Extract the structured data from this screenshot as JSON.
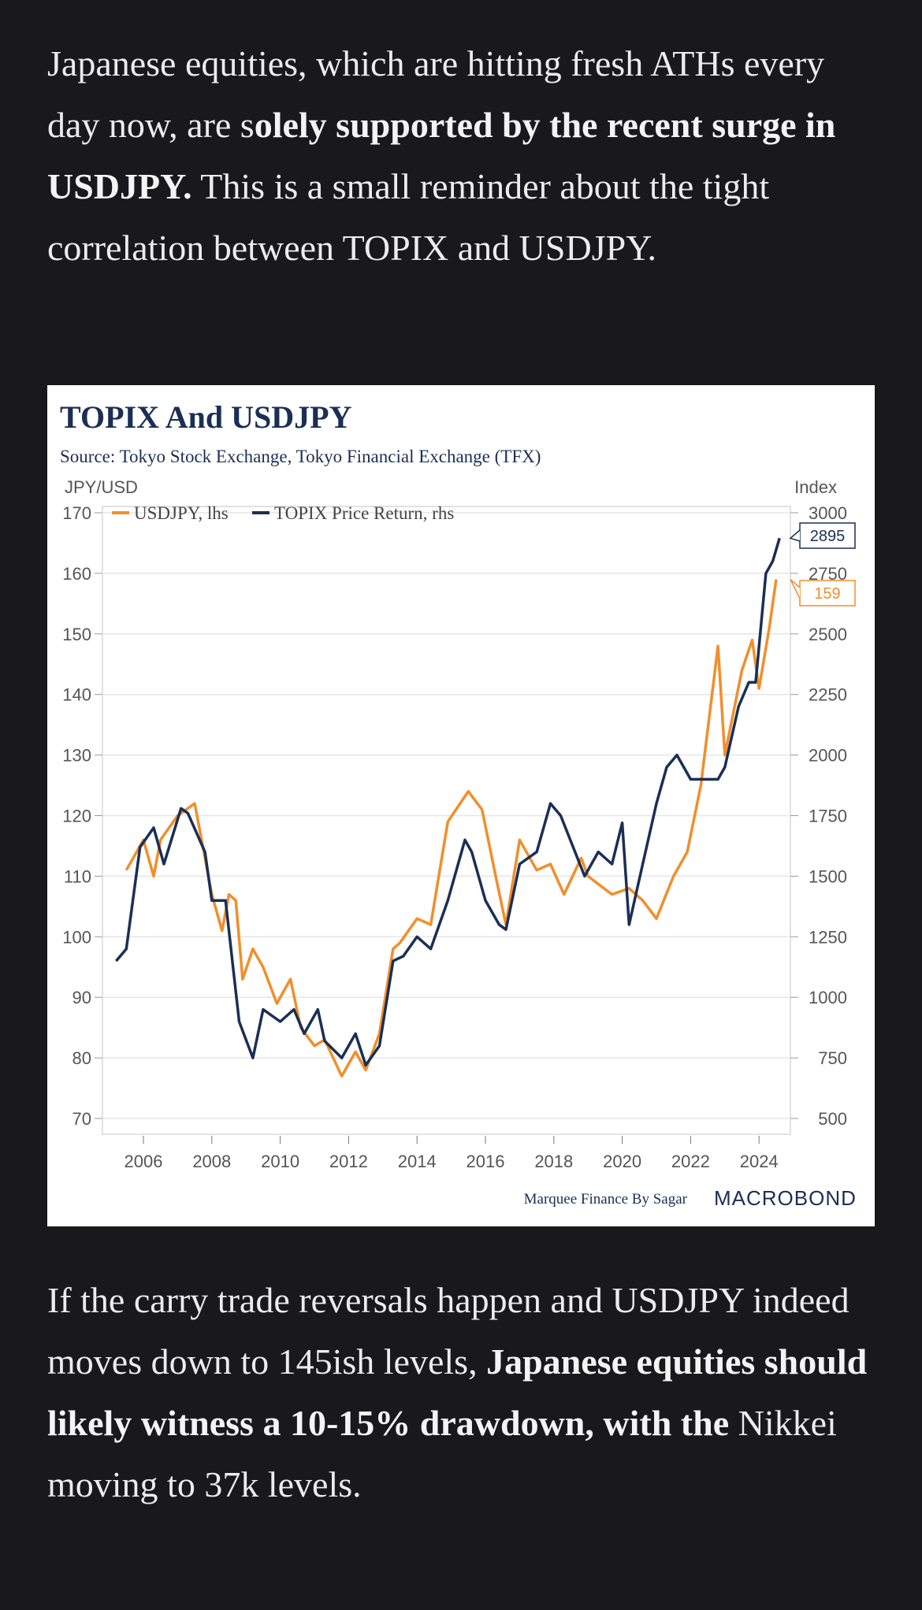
{
  "paragraph1": {
    "t1": "Japanese equities, which are hitting fresh ATHs every day now, are s",
    "b1": "olely supported by the recent surge in USDJPY.",
    "t2": " This is a small reminder about the tight correlation between TOPIX and USDJPY."
  },
  "paragraph2": {
    "t1": "If the carry trade reversals happen and USDJPY indeed moves down to 145ish levels, ",
    "b1": "Japanese equities should likely witness a 10-15% drawdown, with the",
    "t2": " Nikkei moving to 37k levels."
  },
  "chart_data": {
    "type": "line",
    "title": "TOPIX And USDJPY",
    "subtitle": "Source: Tokyo Stock Exchange, Tokyo Financial Exchange (TFX)",
    "ylabel_left": "JPY/USD",
    "ylabel_right": "Index",
    "ylim_left": [
      70,
      170
    ],
    "ylim_right": [
      500,
      3000
    ],
    "yticks_left": [
      "170",
      "160",
      "150",
      "140",
      "130",
      "120",
      "110",
      "100",
      "90",
      "80",
      "70"
    ],
    "yticks_right": [
      "3000",
      "2750",
      "2500",
      "2250",
      "2000",
      "1750",
      "1500",
      "1250",
      "1000",
      "750",
      "500"
    ],
    "xticks": [
      "2006",
      "2008",
      "2010",
      "2012",
      "2014",
      "2016",
      "2018",
      "2020",
      "2022",
      "2024"
    ],
    "legend": [
      "USDJPY, lhs",
      "TOPIX Price Return, rhs"
    ],
    "legend_placement": "top-left",
    "grid": true,
    "colors": {
      "usdjpy": "#f28e2b",
      "topix": "#1b2f55"
    },
    "last_labels": {
      "topix": "2895",
      "usdjpy": "159"
    },
    "series": [
      {
        "name": "USDJPY, lhs",
        "axis": "left",
        "points": [
          [
            2005.5,
            111
          ],
          [
            2005.7,
            113
          ],
          [
            2006.0,
            116
          ],
          [
            2006.3,
            110
          ],
          [
            2006.5,
            116
          ],
          [
            2007.0,
            120
          ],
          [
            2007.5,
            122
          ],
          [
            2007.7,
            116
          ],
          [
            2008.0,
            107
          ],
          [
            2008.3,
            101
          ],
          [
            2008.5,
            107
          ],
          [
            2008.7,
            106
          ],
          [
            2008.9,
            93
          ],
          [
            2009.2,
            98
          ],
          [
            2009.5,
            95
          ],
          [
            2009.9,
            89
          ],
          [
            2010.3,
            93
          ],
          [
            2010.6,
            85
          ],
          [
            2011.0,
            82
          ],
          [
            2011.3,
            83
          ],
          [
            2011.8,
            77
          ],
          [
            2012.2,
            81
          ],
          [
            2012.5,
            78
          ],
          [
            2012.9,
            84
          ],
          [
            2013.3,
            98
          ],
          [
            2013.5,
            99
          ],
          [
            2014.0,
            103
          ],
          [
            2014.4,
            102
          ],
          [
            2014.9,
            119
          ],
          [
            2015.5,
            124
          ],
          [
            2015.9,
            121
          ],
          [
            2016.3,
            110
          ],
          [
            2016.6,
            102
          ],
          [
            2017.0,
            116
          ],
          [
            2017.5,
            111
          ],
          [
            2017.9,
            112
          ],
          [
            2018.3,
            107
          ],
          [
            2018.8,
            113
          ],
          [
            2019.0,
            110
          ],
          [
            2019.7,
            107
          ],
          [
            2020.2,
            108
          ],
          [
            2020.6,
            106
          ],
          [
            2021.0,
            103
          ],
          [
            2021.5,
            110
          ],
          [
            2021.9,
            114
          ],
          [
            2022.3,
            125
          ],
          [
            2022.8,
            148
          ],
          [
            2023.0,
            130
          ],
          [
            2023.5,
            144
          ],
          [
            2023.8,
            149
          ],
          [
            2024.0,
            141
          ],
          [
            2024.3,
            151
          ],
          [
            2024.5,
            159
          ]
        ]
      },
      {
        "name": "TOPIX Price Return, rhs",
        "axis": "right",
        "points": [
          [
            2005.2,
            1150
          ],
          [
            2005.5,
            1200
          ],
          [
            2005.9,
            1620
          ],
          [
            2006.3,
            1700
          ],
          [
            2006.6,
            1550
          ],
          [
            2007.1,
            1780
          ],
          [
            2007.3,
            1760
          ],
          [
            2007.8,
            1600
          ],
          [
            2008.0,
            1400
          ],
          [
            2008.4,
            1400
          ],
          [
            2008.8,
            900
          ],
          [
            2009.2,
            750
          ],
          [
            2009.5,
            950
          ],
          [
            2010.0,
            900
          ],
          [
            2010.4,
            950
          ],
          [
            2010.7,
            850
          ],
          [
            2011.1,
            950
          ],
          [
            2011.3,
            820
          ],
          [
            2011.8,
            750
          ],
          [
            2012.2,
            850
          ],
          [
            2012.5,
            720
          ],
          [
            2012.9,
            800
          ],
          [
            2013.3,
            1150
          ],
          [
            2013.6,
            1170
          ],
          [
            2014.0,
            1250
          ],
          [
            2014.4,
            1200
          ],
          [
            2014.9,
            1400
          ],
          [
            2015.4,
            1650
          ],
          [
            2015.6,
            1600
          ],
          [
            2016.0,
            1400
          ],
          [
            2016.4,
            1300
          ],
          [
            2016.6,
            1280
          ],
          [
            2017.0,
            1550
          ],
          [
            2017.5,
            1600
          ],
          [
            2017.9,
            1800
          ],
          [
            2018.2,
            1750
          ],
          [
            2018.9,
            1500
          ],
          [
            2019.3,
            1600
          ],
          [
            2019.7,
            1550
          ],
          [
            2020.0,
            1720
          ],
          [
            2020.2,
            1300
          ],
          [
            2020.6,
            1550
          ],
          [
            2021.0,
            1800
          ],
          [
            2021.3,
            1950
          ],
          [
            2021.6,
            2000
          ],
          [
            2022.0,
            1900
          ],
          [
            2022.5,
            1900
          ],
          [
            2022.8,
            1900
          ],
          [
            2023.0,
            1950
          ],
          [
            2023.4,
            2200
          ],
          [
            2023.7,
            2300
          ],
          [
            2023.9,
            2300
          ],
          [
            2024.2,
            2750
          ],
          [
            2024.4,
            2800
          ],
          [
            2024.6,
            2895
          ]
        ]
      }
    ],
    "footer_credit": "Marquee Finance By Sagar",
    "footer_logo": "MACROBOND"
  }
}
